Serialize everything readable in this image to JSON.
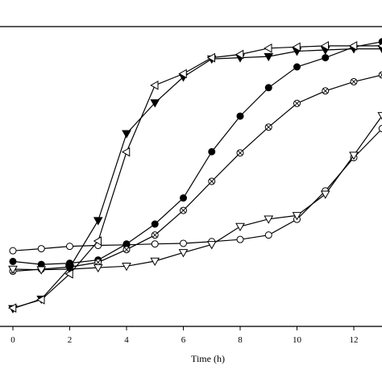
{
  "chart_data": {
    "type": "line",
    "xlabel": "Time (h)",
    "ylabel": "",
    "xlim": [
      -0.25,
      13.0
    ],
    "ylim": [
      0,
      100
    ],
    "x_ticks": [
      0,
      2,
      4,
      6,
      8,
      10,
      12
    ],
    "x_tick_labels": [
      "0",
      "2",
      "4",
      "6",
      "8",
      "10",
      "12"
    ],
    "grid": false,
    "series": [
      {
        "marker": "circle-open",
        "x": [
          0,
          1,
          2,
          3,
          4,
          5,
          6,
          7,
          8,
          9,
          10,
          11,
          12,
          13
        ],
        "y": [
          25.5,
          26.2,
          27.0,
          27.3,
          27.5,
          27.8,
          28.0,
          28.6,
          29.3,
          30.8,
          36.1,
          45.7,
          56.9,
          66.7
        ]
      },
      {
        "marker": "circle-filled",
        "x": [
          0,
          1,
          2,
          3,
          4,
          5,
          6,
          7,
          8,
          9,
          10,
          11,
          12,
          13
        ],
        "y": [
          21.9,
          20.9,
          21.3,
          22.4,
          27.8,
          34.5,
          43.3,
          58.9,
          70.9,
          80.5,
          87.5,
          90.6,
          94.2,
          96.0
        ]
      },
      {
        "marker": "circle-crossed",
        "x": [
          0,
          1,
          2,
          3,
          4,
          5,
          6,
          7,
          8,
          9,
          10,
          11,
          12,
          13
        ],
        "y": [
          18.6,
          19.3,
          20.0,
          21.6,
          25.9,
          30.8,
          39.1,
          48.9,
          58.5,
          67.2,
          75.2,
          79.4,
          82.5,
          84.8
        ]
      },
      {
        "marker": "triangle-down-open",
        "x": [
          0,
          1,
          2,
          3,
          4,
          5,
          6,
          7,
          8,
          9,
          10,
          11,
          12,
          13
        ],
        "y": [
          19.3,
          19.1,
          19.3,
          19.8,
          20.3,
          22.0,
          24.9,
          27.6,
          33.7,
          36.2,
          37.4,
          44.6,
          57.7,
          71.1
        ]
      },
      {
        "marker": "triangle-down-filled",
        "x": [
          0,
          1,
          2,
          3,
          4,
          5,
          6,
          7,
          8,
          9,
          10,
          11,
          12,
          13
        ],
        "y": [
          6.0,
          9.2,
          19.8,
          35.7,
          65.0,
          75.4,
          84.1,
          90.2,
          90.6,
          91.0,
          92.8,
          93.2,
          93.6,
          93.6
        ]
      },
      {
        "marker": "triangle-left-open",
        "x": [
          0,
          1,
          2,
          3,
          4,
          5,
          6,
          7,
          8,
          9,
          10,
          11,
          12,
          13
        ],
        "y": [
          6.2,
          9.0,
          17.7,
          28.8,
          58.8,
          81.3,
          85.2,
          90.6,
          91.7,
          93.8,
          94.2,
          94.6,
          94.6,
          94.6
        ]
      }
    ]
  }
}
